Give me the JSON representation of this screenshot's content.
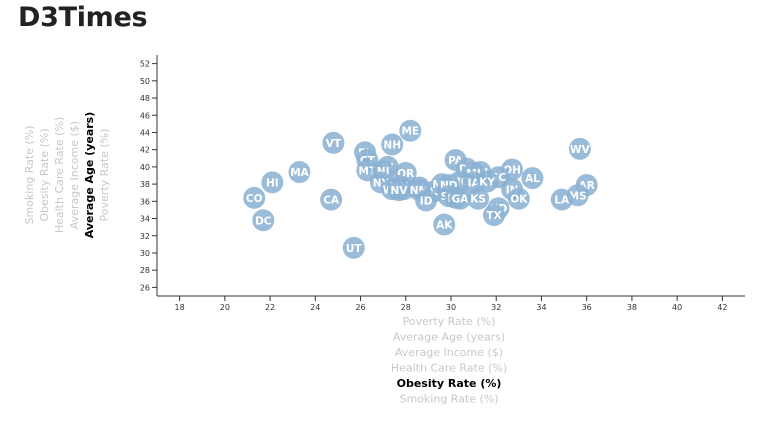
{
  "page": {
    "title": "D3Times"
  },
  "colors": {
    "marker": "#89b0d2",
    "marker_text": "#ffffff",
    "axis_inactive": "#c8c8c8",
    "axis_active": "#000000"
  },
  "chart_data": {
    "type": "scatter",
    "xlim": [
      17,
      43
    ],
    "ylim": [
      25,
      53
    ],
    "x_ticks": [
      18,
      20,
      22,
      24,
      26,
      28,
      30,
      32,
      34,
      36,
      38,
      40,
      42
    ],
    "y_ticks": [
      26,
      28,
      30,
      32,
      34,
      36,
      38,
      40,
      42,
      44,
      46,
      48,
      50,
      52
    ],
    "x_axis_options": [
      {
        "label": "Poverty Rate (%)",
        "active": false
      },
      {
        "label": "Average Age (years)",
        "active": false
      },
      {
        "label": "Average Income ($)",
        "active": false
      },
      {
        "label": "Health Care Rate (%)",
        "active": false
      },
      {
        "label": "Obesity Rate (%)",
        "active": true
      },
      {
        "label": "Smoking Rate (%)",
        "active": false
      }
    ],
    "y_axis_options": [
      {
        "label": "Smoking Rate (%)",
        "active": false
      },
      {
        "label": "Obesity Rate (%)",
        "active": false
      },
      {
        "label": "Health Care Rate (%)",
        "active": false
      },
      {
        "label": "Average Income ($)",
        "active": false
      },
      {
        "label": "Average Age (years)",
        "active": true
      },
      {
        "label": "Poverty Rate (%)",
        "active": false
      }
    ],
    "points": [
      {
        "label": "ME",
        "x": 28.2,
        "y": 44.2
      },
      {
        "label": "VT",
        "x": 24.8,
        "y": 42.8
      },
      {
        "label": "NH",
        "x": 27.4,
        "y": 42.6
      },
      {
        "label": "WV",
        "x": 35.7,
        "y": 42.1
      },
      {
        "label": "FL",
        "x": 26.2,
        "y": 41.7
      },
      {
        "label": "PA",
        "x": 30.2,
        "y": 40.8
      },
      {
        "label": "CT",
        "x": 26.3,
        "y": 40.8
      },
      {
        "label": "RI",
        "x": 27.2,
        "y": 40.0
      },
      {
        "label": "DE",
        "x": 30.7,
        "y": 39.8
      },
      {
        "label": "OH",
        "x": 32.7,
        "y": 39.7
      },
      {
        "label": "MA",
        "x": 23.3,
        "y": 39.4
      },
      {
        "label": "MT",
        "x": 26.3,
        "y": 39.6
      },
      {
        "label": "OR",
        "x": 28.0,
        "y": 39.3
      },
      {
        "label": "WI",
        "x": 31.3,
        "y": 39.4
      },
      {
        "label": "NJ",
        "x": 27.0,
        "y": 39.5
      },
      {
        "label": "SC",
        "x": 32.1,
        "y": 38.8
      },
      {
        "label": "MI",
        "x": 31.0,
        "y": 39.3
      },
      {
        "label": "AL",
        "x": 33.6,
        "y": 38.7
      },
      {
        "label": "HI",
        "x": 22.1,
        "y": 38.2
      },
      {
        "label": "NY",
        "x": 26.9,
        "y": 38.2
      },
      {
        "label": "MO",
        "x": 30.4,
        "y": 38.3
      },
      {
        "label": "IA",
        "x": 31.0,
        "y": 38.2
      },
      {
        "label": "KY",
        "x": 31.6,
        "y": 38.3
      },
      {
        "label": "AR",
        "x": 36.0,
        "y": 37.9
      },
      {
        "label": "WA",
        "x": 27.9,
        "y": 37.4
      },
      {
        "label": "VA",
        "x": 28.6,
        "y": 37.6
      },
      {
        "label": "WY",
        "x": 27.4,
        "y": 37.4
      },
      {
        "label": "MN",
        "x": 27.7,
        "y": 37.8
      },
      {
        "label": "NV",
        "x": 27.7,
        "y": 37.3
      },
      {
        "label": "NM",
        "x": 28.6,
        "y": 37.3
      },
      {
        "label": "IN",
        "x": 32.7,
        "y": 37.4
      },
      {
        "label": "MS",
        "x": 35.6,
        "y": 36.7
      },
      {
        "label": "IL",
        "x": 29.3,
        "y": 37.2
      },
      {
        "label": "CO",
        "x": 21.3,
        "y": 36.4
      },
      {
        "label": "MD",
        "x": 29.6,
        "y": 38.0
      },
      {
        "label": "ND",
        "x": 29.9,
        "y": 37.9
      },
      {
        "label": "SD",
        "x": 29.9,
        "y": 36.6
      },
      {
        "label": "NE",
        "x": 30.2,
        "y": 36.4
      },
      {
        "label": "GA",
        "x": 30.4,
        "y": 36.3
      },
      {
        "label": "KS",
        "x": 31.2,
        "y": 36.3
      },
      {
        "label": "OK",
        "x": 33.0,
        "y": 36.3
      },
      {
        "label": "CA",
        "x": 24.7,
        "y": 36.2
      },
      {
        "label": "LA",
        "x": 34.9,
        "y": 36.2
      },
      {
        "label": "ID",
        "x": 28.9,
        "y": 36.1
      },
      {
        "label": "ND",
        "x": 32.1,
        "y": 35.2
      },
      {
        "label": "TX",
        "x": 31.9,
        "y": 34.4
      },
      {
        "label": "DC",
        "x": 21.7,
        "y": 33.8
      },
      {
        "label": "AK",
        "x": 29.7,
        "y": 33.3
      },
      {
        "label": "UT",
        "x": 25.7,
        "y": 30.6
      }
    ]
  }
}
